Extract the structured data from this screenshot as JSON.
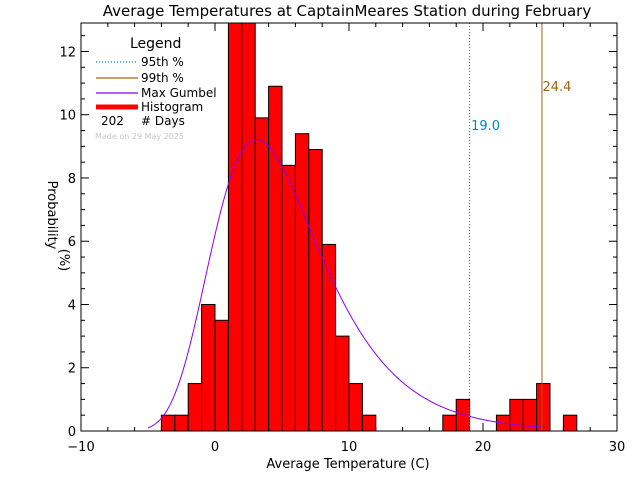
{
  "chart_data": {
    "type": "bar",
    "title": "Average Temperatures at CaptainMeares Station during February",
    "xlabel": "Average Temperature (C)",
    "ylabel_line1": "Probability",
    "ylabel_line2": "(%)",
    "xlim": [
      -10,
      30
    ],
    "ylim": [
      0,
      12.9
    ],
    "xticks": [
      -10,
      0,
      10,
      20,
      30
    ],
    "yticks": [
      0,
      2,
      4,
      6,
      8,
      10,
      12
    ],
    "bin_width": 1,
    "histogram": {
      "name": "Histogram",
      "color": "#ff0000",
      "bins": [
        {
          "x0": -4,
          "value": 0.5
        },
        {
          "x0": -3,
          "value": 0.5
        },
        {
          "x0": -2,
          "value": 1.5
        },
        {
          "x0": -1,
          "value": 4.0
        },
        {
          "x0": 0,
          "value": 3.5
        },
        {
          "x0": 1,
          "value": 12.9
        },
        {
          "x0": 2,
          "value": 12.9
        },
        {
          "x0": 3,
          "value": 9.9
        },
        {
          "x0": 4,
          "value": 10.9
        },
        {
          "x0": 5,
          "value": 8.4
        },
        {
          "x0": 6,
          "value": 9.4
        },
        {
          "x0": 7,
          "value": 8.9
        },
        {
          "x0": 8,
          "value": 5.9
        },
        {
          "x0": 9,
          "value": 3.0
        },
        {
          "x0": 10,
          "value": 1.5
        },
        {
          "x0": 11,
          "value": 0.5
        },
        {
          "x0": 17,
          "value": 0.5
        },
        {
          "x0": 18,
          "value": 1.0
        },
        {
          "x0": 21,
          "value": 0.5
        },
        {
          "x0": 22,
          "value": 1.0
        },
        {
          "x0": 23,
          "value": 1.0
        },
        {
          "x0": 24,
          "value": 1.5
        },
        {
          "x0": 26,
          "value": 0.5
        }
      ]
    },
    "gumbel": {
      "name": "Max Gumbel",
      "color": "#8800ee",
      "mode": 3.1,
      "scale": 4.0,
      "x_start": -5,
      "x_end": 25
    },
    "percentile_95": {
      "label": "95th %",
      "value": 19.0,
      "text": "19.0",
      "color": "#0088cc"
    },
    "percentile_99": {
      "label": "99th %",
      "value": 24.4,
      "text": "24.4",
      "color": "#a0621a"
    },
    "days_count": "202",
    "days_label": "# Days"
  },
  "legend": {
    "title": "Legend",
    "p95_label": "95th %",
    "p99_label": "99th %",
    "gumbel_label": "Max Gumbel",
    "histogram_label": "Histogram",
    "days_count": "202",
    "days_label": "# Days"
  },
  "watermark": "Made on 29 May 2025"
}
